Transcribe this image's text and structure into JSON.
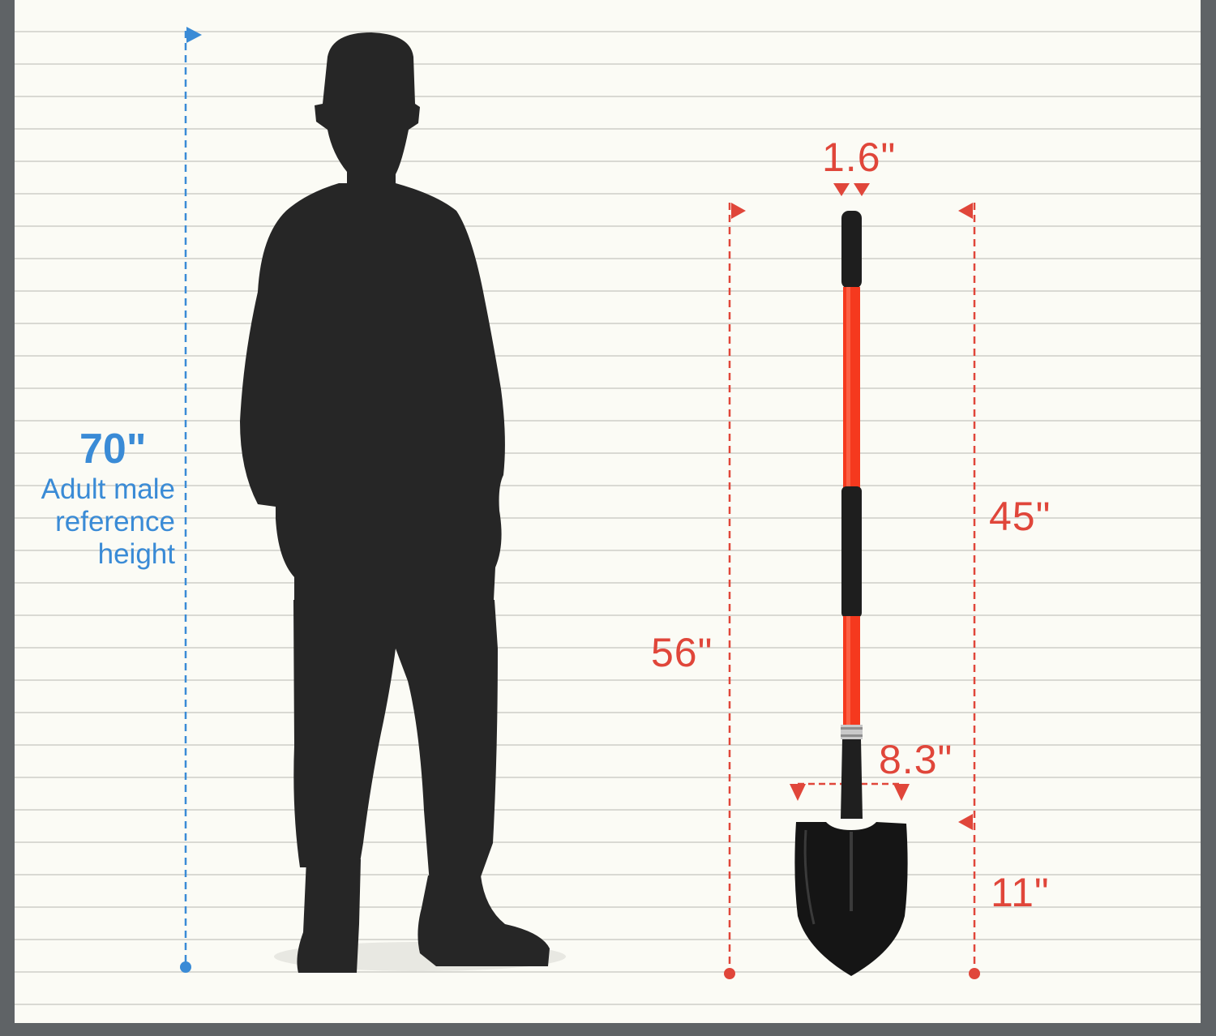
{
  "reference": {
    "height_value": "70\"",
    "note_lines": [
      "Adult male",
      "reference",
      "height"
    ]
  },
  "shovel": {
    "total_length": "56\"",
    "handle_length": "45\"",
    "blade_length": "11\"",
    "handle_diameter": "1.6\"",
    "blade_width": "8.3\""
  },
  "colors": {
    "blue": "#3a8bd6",
    "red": "#e0463a",
    "silhouette": "#262626",
    "handle": "#f5391e",
    "grip": "#1e1e1e",
    "background": "#fbfbf5",
    "frame": "#5f6366"
  },
  "icons": [
    "person-silhouette-icon",
    "shovel-icon"
  ]
}
